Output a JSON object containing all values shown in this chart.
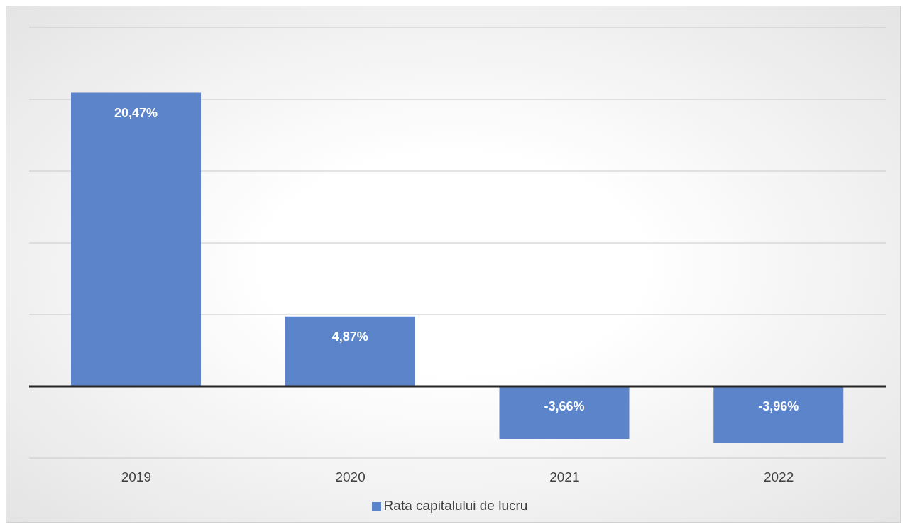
{
  "chart_data": {
    "type": "bar",
    "categories": [
      "2019",
      "2020",
      "2021",
      "2022"
    ],
    "series": [
      {
        "name": "Rata capitalului de lucru",
        "color": "#5b84cb",
        "values": [
          20.47,
          4.87,
          -3.66,
          -3.96
        ],
        "value_labels": [
          "20,47%",
          "4,87%",
          "-3,66%",
          "-3,96%"
        ]
      }
    ],
    "tick_labels": "x",
    "grid": "y",
    "legend": "bottom"
  }
}
